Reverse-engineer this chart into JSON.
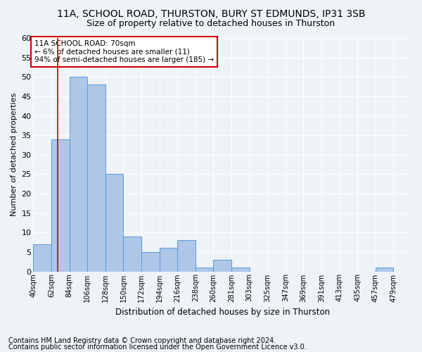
{
  "title1": "11A, SCHOOL ROAD, THURSTON, BURY ST EDMUNDS, IP31 3SB",
  "title2": "Size of property relative to detached houses in Thurston",
  "xlabel": "Distribution of detached houses by size in Thurston",
  "ylabel": "Number of detached properties",
  "footnote1": "Contains HM Land Registry data © Crown copyright and database right 2024.",
  "footnote2": "Contains public sector information licensed under the Open Government Licence v3.0.",
  "bin_labels": [
    "40sqm",
    "62sqm",
    "84sqm",
    "106sqm",
    "128sqm",
    "150sqm",
    "172sqm",
    "194sqm",
    "216sqm",
    "238sqm",
    "260sqm",
    "281sqm",
    "303sqm",
    "325sqm",
    "347sqm",
    "369sqm",
    "391sqm",
    "413sqm",
    "435sqm",
    "457sqm",
    "479sqm"
  ],
  "counts": [
    7,
    34,
    50,
    48,
    25,
    9,
    5,
    6,
    8,
    1,
    3,
    1,
    0,
    0,
    0,
    0,
    0,
    0,
    0,
    1,
    0
  ],
  "bar_color": "#aec6e8",
  "bar_edge_color": "#5b9bd5",
  "vline_bin_index": 1.36,
  "annotation_text": "11A SCHOOL ROAD: 70sqm\n← 6% of detached houses are smaller (11)\n94% of semi-detached houses are larger (185) →",
  "annotation_box_color": "#ffffff",
  "annotation_box_edge": "#cc0000",
  "vline_color": "#cc0000",
  "ylim": [
    0,
    60
  ],
  "yticks": [
    0,
    5,
    10,
    15,
    20,
    25,
    30,
    35,
    40,
    45,
    50,
    55,
    60
  ],
  "background_color": "#eef3f8",
  "grid_color": "#ffffff",
  "title1_fontsize": 10,
  "title2_fontsize": 9,
  "footnote_fontsize": 7.0
}
